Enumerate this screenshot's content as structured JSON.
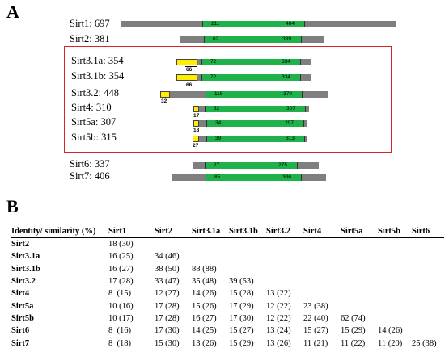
{
  "panel_a": {
    "letter": "A",
    "proteins": [
      {
        "label": "Sirt1: 697",
        "length": 697,
        "domain_start": "211",
        "domain_end": "484",
        "boxed": false
      },
      {
        "label": "Sirt2: 381",
        "length": 381,
        "domain_start": "62",
        "domain_end": "339",
        "boxed": false
      },
      {
        "label": "Sirt3.1a: 354",
        "length": 354,
        "domain_start": "72",
        "domain_end": "334",
        "boxed": true,
        "mts": "66"
      },
      {
        "label": "Sirt3.1b: 354",
        "length": 354,
        "domain_start": "72",
        "domain_end": "334",
        "boxed": true,
        "mts": "66"
      },
      {
        "label": "Sirt3.2: 448",
        "length": 448,
        "domain_start": "116",
        "domain_end": "370",
        "boxed": true,
        "mts": "32"
      },
      {
        "label": "Sirt4: 310",
        "length": 310,
        "domain_start": "32",
        "domain_end": "307",
        "boxed": true,
        "mts": "17"
      },
      {
        "label": "Sirt5a: 307",
        "length": 307,
        "domain_start": "34",
        "domain_end": "297",
        "boxed": true,
        "mts": "18"
      },
      {
        "label": "Sirt5b: 315",
        "length": 315,
        "domain_start": "39",
        "domain_end": "313",
        "boxed": true,
        "mts": "27"
      },
      {
        "label": "Sirt6: 337",
        "length": 337,
        "domain_start": "27",
        "domain_end": "275",
        "boxed": false
      },
      {
        "label": "Sirt7: 406",
        "length": 406,
        "domain_start": "85",
        "domain_end": "336",
        "boxed": false
      }
    ],
    "colors": {
      "linker": "#7f7f7f",
      "sirtuin_domain": "#1fb24a",
      "mts": "#ffee00",
      "box": "#e0202a"
    }
  },
  "panel_b": {
    "letter": "B",
    "header": [
      "Identity/ similarity (%)",
      "Sirt1",
      "Sirt2",
      "Sirt3.1a",
      "Sirt3.1b",
      "Sirt3.2",
      "Sirt4",
      "Sirt5a",
      "Sirt5b",
      "Sirt6"
    ],
    "rows": [
      {
        "name": "Sirt2",
        "cells": [
          "18 (30)",
          "",
          "",
          "",
          "",
          "",
          "",
          "",
          ""
        ]
      },
      {
        "name": "Sirt3.1a",
        "cells": [
          "16 (25)",
          "34 (46)",
          "",
          "",
          "",
          "",
          "",
          "",
          ""
        ]
      },
      {
        "name": "Sirt3.1b",
        "cells": [
          "16 (27)",
          "38 (50)",
          "88 (88)",
          "",
          "",
          "",
          "",
          "",
          ""
        ]
      },
      {
        "name": "Sirt3.2",
        "cells": [
          "17 (28)",
          "33 (47)",
          "35 (48)",
          "39 (53)",
          "",
          "",
          "",
          "",
          ""
        ]
      },
      {
        "name": "Sirt4",
        "cells": [
          "8  (15)",
          "12 (27)",
          "14 (26)",
          "15 (28)",
          "13 (22)",
          "",
          "",
          "",
          ""
        ]
      },
      {
        "name": "Sirt5a",
        "cells": [
          "10 (16)",
          "17 (28)",
          "15 (26)",
          "17 (29)",
          "12 (22)",
          "23 (38)",
          "",
          "",
          ""
        ]
      },
      {
        "name": "Sirt5b",
        "cells": [
          "10 (17)",
          "17 (28)",
          "16 (27)",
          "17 (30)",
          "12 (22)",
          "22 (40)",
          "62 (74)",
          "",
          ""
        ]
      },
      {
        "name": "Sirt6",
        "cells": [
          "8  (16)",
          "17 (30)",
          "14 (25)",
          "15 (27)",
          "13 (24)",
          "15 (27)",
          "15 (29)",
          "14 (26)",
          ""
        ]
      },
      {
        "name": "Sirt7",
        "cells": [
          "8  (18)",
          "15 (30)",
          "13 (26)",
          "15 (29)",
          "13 (26)",
          "11 (21)",
          "11 (22)",
          "11 (20)",
          "25 (38)"
        ]
      }
    ]
  }
}
